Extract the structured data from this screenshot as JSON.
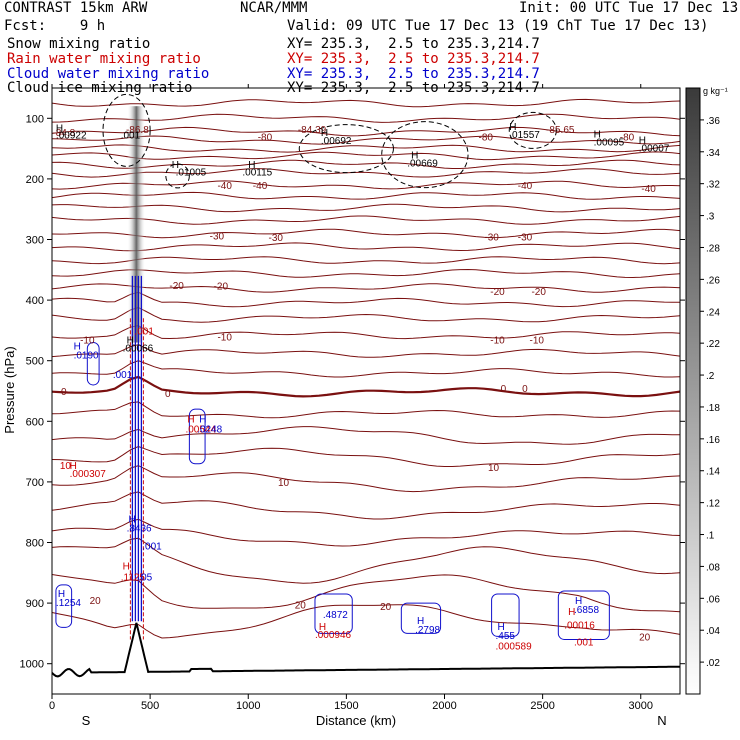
{
  "header": {
    "model": "CONTRAST 15km ARW",
    "org": "NCAR/MMM",
    "init": "Init: 00 UTC Tue 17 Dec 13",
    "fcst": "Fcst:    9 h",
    "valid": "Valid: 09 UTC Tue 17 Dec 13 (19 ChT Tue 17 Dec 13)",
    "fields": [
      {
        "label": "Snow mixing ratio",
        "xy": "XY= 235.3,  2.5 to 235.3,214.7",
        "color": "#000000"
      },
      {
        "label": "Rain water mixing ratio",
        "xy": "XY= 235.3,  2.5 to 235.3,214.7",
        "color": "#cc0000"
      },
      {
        "label": "Cloud water mixing ratio",
        "xy": "XY= 235.3,  2.5 to 235.3,214.7",
        "color": "#0000cc"
      },
      {
        "label": "Cloud ice mixing ratio",
        "xy": "XY= 235.3,  2.5 to 235.3,214.7",
        "color": "#000000"
      }
    ]
  },
  "chart_data": {
    "type": "contour cross-section",
    "xlabel": "Distance (km)",
    "ylabel": "Pressure (hPa)",
    "xlim": [
      0,
      3200
    ],
    "ylim": [
      1050,
      50
    ],
    "xticks": [
      0,
      500,
      1000,
      1500,
      2000,
      2500,
      3000
    ],
    "yticks": [
      100,
      200,
      300,
      400,
      500,
      600,
      700,
      800,
      900,
      1000
    ],
    "x_end_labels": {
      "left": "S",
      "right": "N"
    },
    "colorbar": {
      "unit": "g kg⁻¹",
      "ticks": [
        ".02",
        ".04",
        ".06",
        ".08",
        ".1",
        ".12",
        ".14",
        ".16",
        ".18",
        ".2",
        ".22",
        ".24",
        ".26",
        ".28",
        ".3",
        ".32",
        ".34",
        ".36"
      ]
    },
    "temperature_contours": [
      {
        "x": 60,
        "p": 123,
        "label": "-84.8"
      },
      {
        "x": 1325,
        "p": 118,
        "label": "-84.39"
      },
      {
        "x": 435,
        "p": 118,
        "label": "-86.8"
      },
      {
        "x": 2590,
        "p": 118,
        "label": "-85.65"
      },
      {
        "x": 1085,
        "p": 130,
        "label": "-80"
      },
      {
        "x": 2210,
        "p": 130,
        "label": "-80"
      },
      {
        "x": 2930,
        "p": 130,
        "label": "-80"
      },
      {
        "x": 880,
        "p": 210,
        "label": "-40"
      },
      {
        "x": 1060,
        "p": 210,
        "label": "-40"
      },
      {
        "x": 2410,
        "p": 210,
        "label": "-40"
      },
      {
        "x": 3040,
        "p": 215,
        "label": "-40"
      },
      {
        "x": 840,
        "p": 293,
        "label": "-30"
      },
      {
        "x": 1140,
        "p": 296,
        "label": "-30"
      },
      {
        "x": 2240,
        "p": 295,
        "label": "-30"
      },
      {
        "x": 2410,
        "p": 295,
        "label": "-30"
      },
      {
        "x": 635,
        "p": 375,
        "label": "-20"
      },
      {
        "x": 860,
        "p": 376,
        "label": "-20"
      },
      {
        "x": 2270,
        "p": 385,
        "label": "-20"
      },
      {
        "x": 2480,
        "p": 385,
        "label": "-20"
      },
      {
        "x": 180,
        "p": 465,
        "label": "-10"
      },
      {
        "x": 880,
        "p": 460,
        "label": "-10"
      },
      {
        "x": 2270,
        "p": 465,
        "label": "-10"
      },
      {
        "x": 2470,
        "p": 465,
        "label": "-10"
      },
      {
        "x": 60,
        "p": 550,
        "label": "0"
      },
      {
        "x": 590,
        "p": 553,
        "label": "0"
      },
      {
        "x": 2300,
        "p": 545,
        "label": "0"
      },
      {
        "x": 2410,
        "p": 545,
        "label": "0"
      },
      {
        "x": 2250,
        "p": 675,
        "label": "10"
      },
      {
        "x": 1180,
        "p": 700,
        "label": "10"
      },
      {
        "x": 220,
        "p": 895,
        "label": "20"
      },
      {
        "x": 1265,
        "p": 902,
        "label": "20"
      },
      {
        "x": 1700,
        "p": 905,
        "label": "20"
      },
      {
        "x": 3020,
        "p": 955,
        "label": "20"
      }
    ],
    "maxima_labels": [
      {
        "x": 20,
        "p": 115,
        "text": "H",
        "color": "#000000"
      },
      {
        "x": 20,
        "p": 127,
        "text": ".00922",
        "color": "#000000"
      },
      {
        "x": 350,
        "p": 127,
        "text": ".001",
        "color": "#000000"
      },
      {
        "x": 610,
        "p": 175,
        "text": "H",
        "color": "#000000"
      },
      {
        "x": 630,
        "p": 188,
        "text": ".01005",
        "color": "#000000"
      },
      {
        "x": 1000,
        "p": 175,
        "text": "H",
        "color": "#000000"
      },
      {
        "x": 970,
        "p": 188,
        "text": ".00115",
        "color": "#000000"
      },
      {
        "x": 1370,
        "p": 123,
        "text": "H",
        "color": "#000000"
      },
      {
        "x": 1370,
        "p": 136,
        "text": ".00692",
        "color": "#000000"
      },
      {
        "x": 1830,
        "p": 160,
        "text": "H",
        "color": "#000000"
      },
      {
        "x": 1810,
        "p": 173,
        "text": ".00669",
        "color": "#000000"
      },
      {
        "x": 2330,
        "p": 113,
        "text": "H",
        "color": "#000000"
      },
      {
        "x": 2330,
        "p": 126,
        "text": ".01557",
        "color": "#000000"
      },
      {
        "x": 2760,
        "p": 125,
        "text": "H",
        "color": "#000000"
      },
      {
        "x": 2760,
        "p": 138,
        "text": ".00095",
        "color": "#000000"
      },
      {
        "x": 2990,
        "p": 135,
        "text": "H",
        "color": "#000000"
      },
      {
        "x": 2990,
        "p": 148,
        "text": ".00007",
        "color": "#000000"
      },
      {
        "x": 420,
        "p": 450,
        "text": ".001",
        "color": "#cc0000"
      },
      {
        "x": 380,
        "p": 465,
        "text": "H",
        "color": "#000000"
      },
      {
        "x": 360,
        "p": 478,
        "text": ".00066",
        "color": "#000000"
      },
      {
        "x": 110,
        "p": 475,
        "text": "H",
        "color": "#0000cc"
      },
      {
        "x": 110,
        "p": 490,
        "text": ".0190",
        "color": "#0000cc"
      },
      {
        "x": 310,
        "p": 522,
        "text": ".001",
        "color": "#0000cc"
      },
      {
        "x": 690,
        "p": 595,
        "text": "H",
        "color": "#cc0000"
      },
      {
        "x": 750,
        "p": 595,
        "text": "H",
        "color": "#0000cc"
      },
      {
        "x": 680,
        "p": 612,
        "text": ".00544",
        "color": "#cc0000"
      },
      {
        "x": 740,
        "p": 612,
        "text": ".0248",
        "color": "#0000cc"
      },
      {
        "x": 40,
        "p": 672,
        "text": "10",
        "color": "#cc0000"
      },
      {
        "x": 90,
        "p": 672,
        "text": "H",
        "color": "#cc0000"
      },
      {
        "x": 90,
        "p": 685,
        "text": ".000307",
        "color": "#cc0000"
      },
      {
        "x": 390,
        "p": 760,
        "text": "H",
        "color": "#0000cc"
      },
      {
        "x": 380,
        "p": 775,
        "text": ".8436",
        "color": "#0000cc"
      },
      {
        "x": 460,
        "p": 805,
        "text": ".001",
        "color": "#0000cc"
      },
      {
        "x": 360,
        "p": 838,
        "text": "H",
        "color": "#cc0000"
      },
      {
        "x": 350,
        "p": 856,
        "text": ".1125",
        "color": "#cc0000"
      },
      {
        "x": 440,
        "p": 856,
        "text": ".05",
        "color": "#0000cc"
      },
      {
        "x": 30,
        "p": 883,
        "text": "H",
        "color": "#0000cc"
      },
      {
        "x": 20,
        "p": 898,
        "text": ".1254",
        "color": "#0000cc"
      },
      {
        "x": 1380,
        "p": 918,
        "text": ".4872",
        "color": "#0000cc"
      },
      {
        "x": 1360,
        "p": 938,
        "text": "H",
        "color": "#cc0000"
      },
      {
        "x": 1340,
        "p": 951,
        "text": ".000946",
        "color": "#cc0000"
      },
      {
        "x": 1860,
        "p": 928,
        "text": "H",
        "color": "#0000cc"
      },
      {
        "x": 1850,
        "p": 943,
        "text": ".2798",
        "color": "#0000cc"
      },
      {
        "x": 2270,
        "p": 938,
        "text": "H",
        "color": "#0000cc"
      },
      {
        "x": 2260,
        "p": 953,
        "text": ".455",
        "color": "#0000cc"
      },
      {
        "x": 2260,
        "p": 970,
        "text": ".000589",
        "color": "#cc0000"
      },
      {
        "x": 2665,
        "p": 895,
        "text": "H",
        "color": "#0000cc"
      },
      {
        "x": 2660,
        "p": 910,
        "text": ".6858",
        "color": "#0000cc"
      },
      {
        "x": 2630,
        "p": 913,
        "text": "H",
        "color": "#cc0000"
      },
      {
        "x": 2610,
        "p": 935,
        "text": ".00016",
        "color": "#cc0000"
      },
      {
        "x": 2660,
        "p": 963,
        "text": ".001",
        "color": "#cc0000"
      }
    ]
  }
}
